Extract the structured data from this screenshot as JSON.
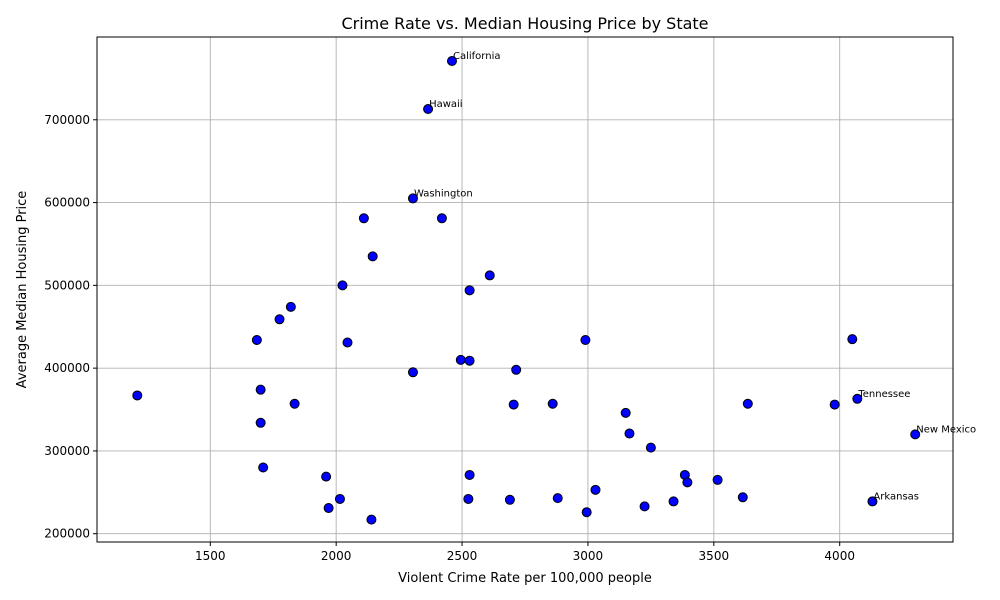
{
  "chart_data": {
    "type": "scatter",
    "title": "Crime Rate vs. Median Housing Price by State",
    "xlabel": "Violent Crime Rate per 100,000 people",
    "ylabel": "Average Median Housing Price",
    "xlim": [
      1050,
      4450
    ],
    "ylim": [
      190000,
      800000
    ],
    "xticks": [
      1500,
      2000,
      2500,
      3000,
      3500,
      4000
    ],
    "yticks": [
      200000,
      300000,
      400000,
      500000,
      600000,
      700000
    ],
    "grid": true,
    "marker_color": "#0000ff",
    "marker_edge": "#000000",
    "points": [
      {
        "x": 2460,
        "y": 771000,
        "label": "California"
      },
      {
        "x": 2365,
        "y": 713000,
        "label": "Hawaii"
      },
      {
        "x": 2305,
        "y": 605000,
        "label": "Washington"
      },
      {
        "x": 2110,
        "y": 581000
      },
      {
        "x": 2420,
        "y": 581000
      },
      {
        "x": 2145,
        "y": 535000
      },
      {
        "x": 2610,
        "y": 512000
      },
      {
        "x": 2025,
        "y": 500000
      },
      {
        "x": 2530,
        "y": 494000
      },
      {
        "x": 1820,
        "y": 474000
      },
      {
        "x": 1775,
        "y": 459000
      },
      {
        "x": 1685,
        "y": 434000
      },
      {
        "x": 2045,
        "y": 431000
      },
      {
        "x": 2990,
        "y": 434000
      },
      {
        "x": 4050,
        "y": 435000
      },
      {
        "x": 2495,
        "y": 410000
      },
      {
        "x": 2530,
        "y": 409000
      },
      {
        "x": 2715,
        "y": 398000
      },
      {
        "x": 2305,
        "y": 395000
      },
      {
        "x": 1700,
        "y": 374000
      },
      {
        "x": 1210,
        "y": 367000
      },
      {
        "x": 1835,
        "y": 357000
      },
      {
        "x": 2705,
        "y": 356000
      },
      {
        "x": 2860,
        "y": 357000
      },
      {
        "x": 3635,
        "y": 357000
      },
      {
        "x": 3980,
        "y": 356000
      },
      {
        "x": 4070,
        "y": 363000,
        "label": "Tennessee"
      },
      {
        "x": 3150,
        "y": 346000
      },
      {
        "x": 1700,
        "y": 334000
      },
      {
        "x": 3165,
        "y": 321000
      },
      {
        "x": 4300,
        "y": 320000,
        "label": "New Mexico"
      },
      {
        "x": 3250,
        "y": 304000
      },
      {
        "x": 1710,
        "y": 280000
      },
      {
        "x": 1960,
        "y": 269000
      },
      {
        "x": 2530,
        "y": 271000
      },
      {
        "x": 3385,
        "y": 271000
      },
      {
        "x": 3395,
        "y": 262000
      },
      {
        "x": 3515,
        "y": 265000
      },
      {
        "x": 3030,
        "y": 253000
      },
      {
        "x": 2015,
        "y": 242000
      },
      {
        "x": 2525,
        "y": 242000
      },
      {
        "x": 2690,
        "y": 241000
      },
      {
        "x": 2880,
        "y": 243000
      },
      {
        "x": 3615,
        "y": 244000
      },
      {
        "x": 3340,
        "y": 239000
      },
      {
        "x": 4130,
        "y": 239000,
        "label": "Arkansas"
      },
      {
        "x": 1970,
        "y": 231000
      },
      {
        "x": 3225,
        "y": 233000
      },
      {
        "x": 2995,
        "y": 226000
      },
      {
        "x": 2140,
        "y": 217000
      }
    ]
  }
}
